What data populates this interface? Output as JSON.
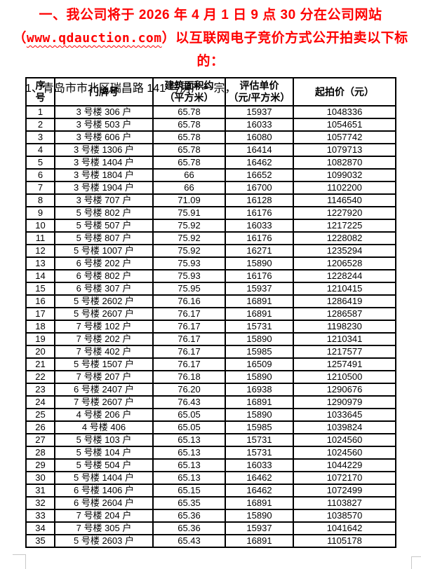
{
  "heading": {
    "line1": "一、我公司将于 2026 年 4 月 1 日 9 点 30 分在公司网站",
    "line2_prefix": "（",
    "url": "www.qdauction.com",
    "line2_suffix": "）以互联网电子竞价方式公开拍卖以下标的：",
    "accent_color": "#fe0000"
  },
  "intro": {
    "lot_line": "1、青岛市市北区瑞昌路 141 号房产一宗，"
  },
  "table": {
    "headers": [
      "序\n号",
      "门牌号",
      "建筑面积约\n（平方米）",
      "评估单价\n（元/平方米）",
      "起拍价（元）"
    ],
    "border_color": "#000000",
    "rows": [
      [
        "1",
        "3 号楼 306 户",
        "65.78",
        "15937",
        "1048336"
      ],
      [
        "2",
        "3 号楼 503 户",
        "65.78",
        "16033",
        "1054651"
      ],
      [
        "3",
        "3 号楼 606 户",
        "65.78",
        "16080",
        "1057742"
      ],
      [
        "4",
        "3 号楼 1306 户",
        "65.78",
        "16414",
        "1079713"
      ],
      [
        "5",
        "3 号楼 1404 户",
        "65.78",
        "16462",
        "1082870"
      ],
      [
        "6",
        "3 号楼 1804 户",
        "66",
        "16652",
        "1099032"
      ],
      [
        "7",
        "3 号楼 1904 户",
        "66",
        "16700",
        "1102200"
      ],
      [
        "8",
        "3 号楼 707 户",
        "71.09",
        "16128",
        "1146540"
      ],
      [
        "9",
        "5 号楼 802 户",
        "75.91",
        "16176",
        "1227920"
      ],
      [
        "10",
        "5 号楼 507 户",
        "75.92",
        "16033",
        "1217225"
      ],
      [
        "11",
        "5 号楼 807 户",
        "75.92",
        "16176",
        "1228082"
      ],
      [
        "12",
        "5 号楼 1007 户",
        "75.92",
        "16271",
        "1235294"
      ],
      [
        "13",
        "6 号楼 202 户",
        "75.93",
        "15890",
        "1206528"
      ],
      [
        "14",
        "6 号楼 802 户",
        "75.93",
        "16176",
        "1228244"
      ],
      [
        "15",
        "6 号楼 307 户",
        "75.95",
        "15937",
        "1210415"
      ],
      [
        "16",
        "5 号楼 2602 户",
        "76.16",
        "16891",
        "1286419"
      ],
      [
        "17",
        "5 号楼 2607 户",
        "76.17",
        "16891",
        "1286587"
      ],
      [
        "18",
        "7 号楼 102 户",
        "76.17",
        "15731",
        "1198230"
      ],
      [
        "19",
        "7 号楼 202 户",
        "76.17",
        "15890",
        "1210341"
      ],
      [
        "20",
        "7 号楼 402 户",
        "76.17",
        "15985",
        "1217577"
      ],
      [
        "21",
        "5 号楼 1507 户",
        "76.17",
        "16509",
        "1257491"
      ],
      [
        "22",
        "7 号楼 207 户",
        "76.18",
        "15890",
        "1210500"
      ],
      [
        "23",
        "6 号楼 2407 户",
        "76.20",
        "16938",
        "1290676"
      ],
      [
        "24",
        "7 号楼 2607 户",
        "76.43",
        "16891",
        "1290979"
      ],
      [
        "25",
        "4 号楼 206 户",
        "65.05",
        "15890",
        "1033645"
      ],
      [
        "26",
        "4 号楼 406",
        "65.05",
        "15985",
        "1039824"
      ],
      [
        "27",
        "5 号楼 103 户",
        "65.13",
        "15731",
        "1024560"
      ],
      [
        "28",
        "5 号楼 104 户",
        "65.13",
        "15731",
        "1024560"
      ],
      [
        "29",
        "5 号楼 504 户",
        "65.13",
        "16033",
        "1044229"
      ],
      [
        "30",
        "5 号楼 1404 户",
        "65.13",
        "16462",
        "1072170"
      ],
      [
        "31",
        "6 号楼 1406 户",
        "65.15",
        "16462",
        "1072499"
      ],
      [
        "32",
        "6 号楼 2604 户",
        "65.35",
        "16891",
        "1103827"
      ],
      [
        "33",
        "7 号楼 204 户",
        "65.36",
        "15890",
        "1038570"
      ],
      [
        "34",
        "7 号楼 305 户",
        "65.36",
        "15937",
        "1041642"
      ],
      [
        "35",
        "5 号楼 2603 户",
        "65.43",
        "16891",
        "1105178"
      ]
    ]
  },
  "page": {
    "background": "#ffffff",
    "crop_mark_color": "#c8c8c8"
  }
}
